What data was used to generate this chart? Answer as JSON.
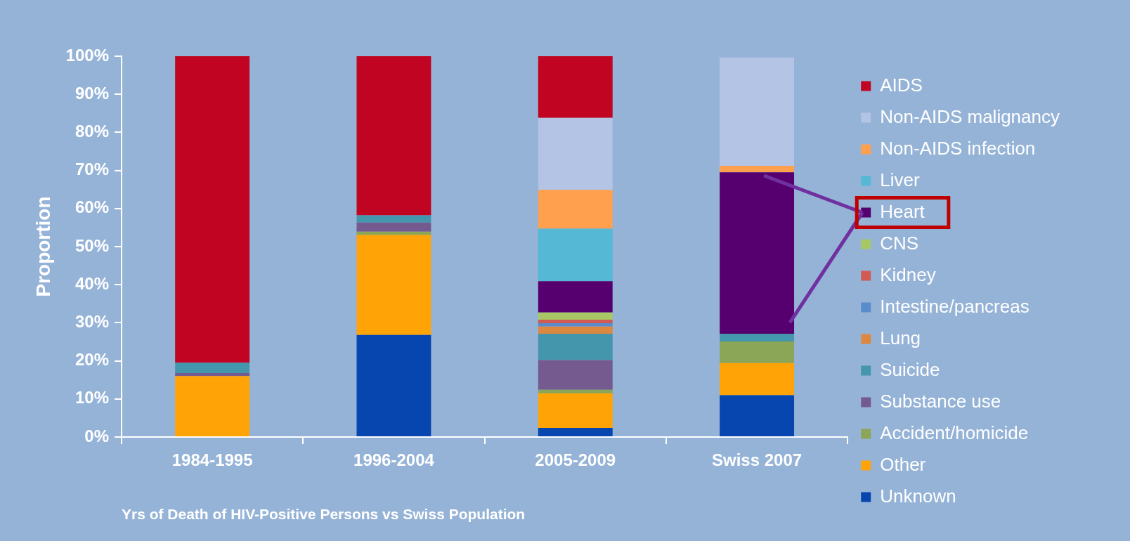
{
  "chart_data": {
    "type": "bar",
    "stacked": true,
    "xlabel": "Yrs of Death of HIV-Positive Persons vs Swiss Population",
    "ylabel": "Proportion",
    "categories": [
      "1984-1995",
      "1996-2004",
      "2005-2009",
      "Swiss 2007"
    ],
    "ylim": [
      0,
      100
    ],
    "yticks": [
      {
        "value": 0,
        "label": "0%"
      },
      {
        "value": 10,
        "label": "10%"
      },
      {
        "value": 20,
        "label": "20%"
      },
      {
        "value": 30,
        "label": "30%"
      },
      {
        "value": 40,
        "label": "40%"
      },
      {
        "value": 50,
        "label": "50%"
      },
      {
        "value": 60,
        "label": "60%"
      },
      {
        "value": 70,
        "label": "70%"
      },
      {
        "value": 80,
        "label": "80%"
      },
      {
        "value": 90,
        "label": "90%"
      },
      {
        "value": 100,
        "label": "100%"
      }
    ],
    "grid": false,
    "legend": "right",
    "series": [
      {
        "name": "Unknown",
        "color": "#0646ae",
        "values": [
          0,
          26.8,
          2.4,
          11.0
        ]
      },
      {
        "name": "Other",
        "color": "#ffa306",
        "values": [
          16.0,
          26.3,
          9.1,
          8.4
        ]
      },
      {
        "name": "Accident/homicide",
        "color": "#8aa656",
        "values": [
          0,
          0.8,
          0.9,
          5.7
        ]
      },
      {
        "name": "Substance use",
        "color": "#745a8e",
        "values": [
          0.8,
          2.4,
          7.8,
          null
        ]
      },
      {
        "name": "Suicide",
        "color": "#4496ac",
        "values": [
          2.7,
          1.9,
          6.9,
          2.0
        ]
      },
      {
        "name": "Lung",
        "color": "#dd8840",
        "values": [
          0,
          0,
          1.9,
          0
        ]
      },
      {
        "name": "Intestine/pancreas",
        "color": "#5a8ccc",
        "values": [
          0,
          0,
          0.9,
          0
        ]
      },
      {
        "name": "Kidney",
        "color": "#d25a55",
        "values": [
          0,
          0,
          0.9,
          0
        ]
      },
      {
        "name": "CNS",
        "color": "#a8c865",
        "values": [
          0,
          0,
          1.9,
          0
        ]
      },
      {
        "name": "Heart",
        "color": "#56006f",
        "values": [
          0,
          0,
          8.2,
          42.4
        ]
      },
      {
        "name": "Liver",
        "color": "#55b8d5",
        "values": [
          0,
          0,
          13.8,
          0
        ]
      },
      {
        "name": "Non-AIDS infection",
        "color": "#ffa04f",
        "values": [
          0,
          0,
          10.2,
          1.7
        ]
      },
      {
        "name": "Non-AIDS malignancy",
        "color": "#b4c4e4",
        "values": [
          0,
          0,
          18.9,
          28.5
        ]
      },
      {
        "name": "AIDS",
        "color": "#c00422",
        "values": [
          80.5,
          41.9,
          16.2,
          0
        ]
      }
    ]
  }
}
